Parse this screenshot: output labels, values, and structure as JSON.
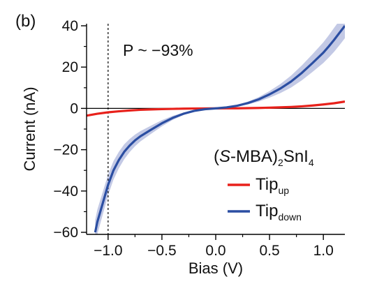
{
  "chart_data": {
    "type": "line",
    "panel_label": "(b)",
    "xlabel": "Bias (V)",
    "ylabel": "Current (nA)",
    "xlim": [
      -1.2,
      1.2
    ],
    "ylim": [
      -61,
      41
    ],
    "x_ticks": [
      -1.0,
      -0.5,
      0.0,
      0.5,
      1.0
    ],
    "x_tick_labels": [
      "-1.0",
      "-0.5",
      "0.0",
      "0.5",
      "1.0"
    ],
    "y_ticks": [
      -60,
      -40,
      -20,
      0,
      20,
      40
    ],
    "y_tick_labels": [
      "-60",
      "-40",
      "-20",
      "0",
      "20",
      "40"
    ],
    "annotation": "P ~ −93%",
    "vertical_dashed_line_x": -1.0,
    "horizontal_zero_line": true,
    "legend": {
      "title_prefix": "(",
      "title_italic": "S",
      "title_mid": "-MBA)",
      "title_sub1": "2",
      "title_mid2": "SnI",
      "title_sub2": "4",
      "placement": "bottom-right",
      "entries": [
        {
          "base": "Tip",
          "sub": "up",
          "color": "#e8211b"
        },
        {
          "base": "Tip",
          "sub": "down",
          "color": "#2b4ea2"
        }
      ]
    },
    "series": [
      {
        "name": "Tip up",
        "color": "#e8211b",
        "x": [
          -1.2,
          -1.1,
          -1.0,
          -0.9,
          -0.8,
          -0.7,
          -0.6,
          -0.5,
          -0.4,
          -0.3,
          -0.2,
          -0.1,
          0.0,
          0.1,
          0.2,
          0.3,
          0.4,
          0.5,
          0.6,
          0.7,
          0.8,
          0.9,
          1.0,
          1.1,
          1.2
        ],
        "y": [
          -3.5,
          -2.6,
          -1.9,
          -1.4,
          -1.0,
          -0.7,
          -0.5,
          -0.35,
          -0.22,
          -0.12,
          -0.06,
          -0.02,
          0.0,
          0.02,
          0.06,
          0.12,
          0.22,
          0.35,
          0.5,
          0.7,
          1.0,
          1.4,
          1.9,
          2.5,
          3.3
        ]
      },
      {
        "name": "Tip down",
        "color": "#2b4ea2",
        "band_color": "#b8bfe0",
        "x": [
          -1.12,
          -1.1,
          -1.05,
          -1.0,
          -0.95,
          -0.9,
          -0.85,
          -0.8,
          -0.75,
          -0.7,
          -0.6,
          -0.5,
          -0.4,
          -0.3,
          -0.2,
          -0.1,
          0.0,
          0.1,
          0.2,
          0.3,
          0.4,
          0.5,
          0.6,
          0.7,
          0.8,
          0.9,
          1.0,
          1.05,
          1.1,
          1.15,
          1.2
        ],
        "y": [
          -60,
          -55,
          -46,
          -37,
          -30,
          -25,
          -21,
          -18,
          -15.5,
          -13.5,
          -10.3,
          -7.2,
          -4.6,
          -2.6,
          -1.2,
          -0.4,
          0.0,
          0.5,
          1.3,
          2.6,
          4.4,
          6.8,
          9.6,
          13.0,
          17.2,
          22.0,
          27.0,
          30.0,
          33.2,
          36.6,
          40.0
        ],
        "band": [
          6,
          6,
          5.5,
          5,
          4.5,
          4,
          3.6,
          3.2,
          2.8,
          2.5,
          2.0,
          1.5,
          1.0,
          0.6,
          0.3,
          0.1,
          0.05,
          0.15,
          0.35,
          0.7,
          1.1,
          1.6,
          2.2,
          2.9,
          3.6,
          4.3,
          5.0,
          5.4,
          5.8,
          6.0,
          6.0
        ]
      }
    ]
  }
}
